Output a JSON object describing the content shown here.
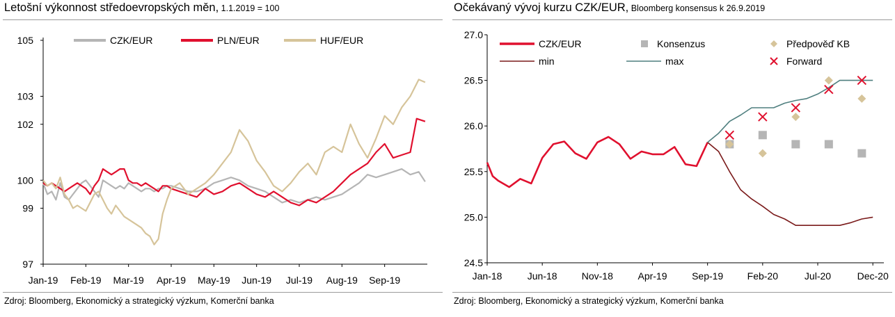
{
  "left": {
    "title_main": "Letošní výkonnost středoevropských měn,",
    "title_sub": " 1.1.2019 = 100",
    "source": "Zdroj: Bloomberg, Ekonomický a strategický výzkum, Komerční banka"
  },
  "right": {
    "title_main": "Očekávaný vývoj kurzu CZK/EUR,",
    "title_sub": " Bloomberg konsensus k 26.9.2019",
    "source": "Zdroj: Bloomberg, Ekonomický a strategický výzkum, Komerční banka"
  },
  "colors": {
    "czk": "#b5b5b5",
    "pln": "#e0102e",
    "huf": "#d6c49a",
    "min": "#7a1a1a",
    "max": "#4f7f7f",
    "konsenzus": "#b5b5b5",
    "predpoved": "#d6c49a",
    "forward": "#e0102e"
  },
  "chart_data": [
    {
      "type": "line",
      "ylim": [
        97,
        105
      ],
      "yticks": [
        "97",
        "99",
        "100",
        "102",
        "103",
        "105"
      ],
      "ytick_values": [
        97,
        99,
        100,
        102,
        103,
        105
      ],
      "xlim": [
        0,
        9
      ],
      "xticks": [
        "Jan-19",
        "Feb-19",
        "Mar-19",
        "Apr-19",
        "May-19",
        "Jun-19",
        "Jul-19",
        "Aug-19",
        "Sep-19"
      ],
      "legend": "top",
      "series": [
        {
          "name": "CZK/EUR",
          "color_key": "czk",
          "x": [
            0.0,
            0.1,
            0.2,
            0.3,
            0.4,
            0.5,
            0.6,
            0.7,
            0.8,
            0.9,
            1.0,
            1.1,
            1.2,
            1.3,
            1.4,
            1.5,
            1.6,
            1.7,
            1.8,
            1.9,
            2.0,
            2.1,
            2.2,
            2.3,
            2.4,
            2.5,
            2.6,
            2.7,
            2.8,
            2.9,
            3.0,
            3.2,
            3.4,
            3.6,
            3.8,
            4.0,
            4.2,
            4.4,
            4.6,
            4.8,
            5.0,
            5.2,
            5.4,
            5.6,
            5.8,
            6.0,
            6.2,
            6.4,
            6.6,
            6.8,
            7.0,
            7.2,
            7.4,
            7.6,
            7.8,
            8.0,
            8.2,
            8.4,
            8.6,
            8.8,
            8.95
          ],
          "y": [
            99.9,
            99.5,
            99.6,
            99.3,
            99.9,
            99.4,
            99.3,
            99.5,
            99.7,
            99.9,
            100.0,
            99.8,
            99.6,
            99.4,
            100.0,
            99.9,
            99.8,
            99.7,
            99.8,
            99.7,
            99.9,
            99.8,
            99.7,
            99.6,
            99.7,
            99.7,
            99.6,
            99.7,
            99.7,
            99.8,
            99.8,
            99.7,
            99.6,
            99.6,
            99.7,
            99.9,
            100.0,
            100.1,
            100.0,
            99.8,
            99.7,
            99.6,
            99.4,
            99.2,
            99.3,
            99.2,
            99.3,
            99.4,
            99.3,
            99.4,
            99.5,
            99.7,
            99.9,
            100.2,
            100.1,
            100.2,
            100.3,
            100.4,
            100.2,
            100.3,
            99.95
          ]
        },
        {
          "name": "PLN/EUR",
          "color_key": "pln",
          "x": [
            0.0,
            0.1,
            0.2,
            0.3,
            0.4,
            0.5,
            0.6,
            0.7,
            0.8,
            0.9,
            1.0,
            1.1,
            1.2,
            1.3,
            1.4,
            1.5,
            1.6,
            1.7,
            1.8,
            1.9,
            2.0,
            2.1,
            2.2,
            2.3,
            2.4,
            2.5,
            2.6,
            2.7,
            2.8,
            2.9,
            3.0,
            3.2,
            3.4,
            3.6,
            3.8,
            4.0,
            4.2,
            4.4,
            4.6,
            4.8,
            5.0,
            5.2,
            5.4,
            5.6,
            5.8,
            6.0,
            6.2,
            6.4,
            6.6,
            6.8,
            7.0,
            7.2,
            7.4,
            7.6,
            7.8,
            8.0,
            8.2,
            8.4,
            8.6,
            8.75,
            8.95
          ],
          "y": [
            99.9,
            99.8,
            99.9,
            99.8,
            99.7,
            99.6,
            99.7,
            99.8,
            99.9,
            99.8,
            99.7,
            99.5,
            99.8,
            100.0,
            100.4,
            100.3,
            100.2,
            100.3,
            100.4,
            100.4,
            100.0,
            99.9,
            99.9,
            99.8,
            99.9,
            99.8,
            99.7,
            99.6,
            99.8,
            99.8,
            99.7,
            99.6,
            99.5,
            99.4,
            99.7,
            99.5,
            99.6,
            99.8,
            99.9,
            99.7,
            99.5,
            99.4,
            99.6,
            99.4,
            99.2,
            99.1,
            99.3,
            99.2,
            99.4,
            99.6,
            99.9,
            100.2,
            100.4,
            100.6,
            101.0,
            101.3,
            100.8,
            100.9,
            101.0,
            102.2,
            102.1
          ]
        },
        {
          "name": "HUF/EUR",
          "color_key": "huf",
          "x": [
            0.0,
            0.1,
            0.2,
            0.3,
            0.4,
            0.5,
            0.6,
            0.7,
            0.8,
            0.9,
            1.0,
            1.1,
            1.2,
            1.3,
            1.4,
            1.5,
            1.6,
            1.7,
            1.8,
            1.9,
            2.0,
            2.1,
            2.2,
            2.3,
            2.4,
            2.5,
            2.6,
            2.7,
            2.8,
            2.9,
            3.0,
            3.2,
            3.4,
            3.6,
            3.8,
            4.0,
            4.2,
            4.4,
            4.6,
            4.8,
            5.0,
            5.2,
            5.4,
            5.6,
            5.8,
            6.0,
            6.2,
            6.4,
            6.6,
            6.8,
            7.0,
            7.2,
            7.4,
            7.6,
            7.8,
            8.0,
            8.2,
            8.4,
            8.6,
            8.8,
            8.95
          ],
          "y": [
            100.0,
            99.8,
            99.9,
            99.7,
            100.1,
            99.5,
            99.3,
            99.0,
            99.1,
            99.0,
            98.9,
            99.2,
            99.5,
            99.6,
            99.3,
            99.0,
            98.8,
            99.1,
            98.9,
            98.7,
            98.6,
            98.5,
            98.4,
            98.3,
            98.1,
            98.0,
            97.7,
            97.9,
            98.8,
            99.3,
            99.7,
            99.9,
            99.5,
            99.7,
            99.9,
            100.2,
            100.6,
            101.0,
            101.8,
            101.4,
            100.7,
            100.3,
            99.8,
            99.6,
            99.9,
            100.3,
            100.6,
            100.2,
            101.0,
            101.2,
            101.0,
            102.0,
            101.3,
            100.8,
            101.5,
            102.3,
            102.0,
            102.6,
            103.0,
            103.6,
            103.5
          ]
        }
      ]
    },
    {
      "type": "line",
      "ylim": [
        24.5,
        27.0
      ],
      "yticks": [
        "24.5",
        "25.0",
        "25.5",
        "26.0",
        "26.5",
        "27.0"
      ],
      "ytick_values": [
        24.5,
        25.0,
        25.5,
        26.0,
        26.5,
        27.0
      ],
      "xlim": [
        0,
        36
      ],
      "xticks": [
        "Jan-18",
        "Jun-18",
        "Nov-18",
        "Apr-19",
        "Sep-19",
        "Feb-20",
        "Jul-20",
        "Dec-20"
      ],
      "xtick_values": [
        0,
        5,
        10,
        15,
        20,
        25,
        30,
        35
      ],
      "legend": "top",
      "series": [
        {
          "name": "CZK/EUR",
          "color_key": "czk_line",
          "x": [
            0,
            0.5,
            1,
            2,
            3,
            4,
            5,
            6,
            7,
            8,
            9,
            10,
            11,
            12,
            13,
            14,
            15,
            16,
            17,
            18,
            19,
            20
          ],
          "y": [
            25.6,
            25.45,
            25.4,
            25.33,
            25.42,
            25.37,
            25.65,
            25.8,
            25.83,
            25.7,
            25.64,
            25.82,
            25.88,
            25.8,
            25.64,
            25.72,
            25.69,
            25.69,
            25.77,
            25.58,
            25.56,
            25.82
          ]
        },
        {
          "name": "min",
          "color_key": "min",
          "x": [
            20,
            21,
            22,
            23,
            24,
            25,
            26,
            27,
            28,
            29,
            30,
            31,
            32,
            33,
            34,
            35
          ],
          "y": [
            25.82,
            25.72,
            25.5,
            25.3,
            25.2,
            25.12,
            25.03,
            24.98,
            24.91,
            24.91,
            24.91,
            24.91,
            24.91,
            24.94,
            24.98,
            25.0
          ]
        },
        {
          "name": "max",
          "color_key": "max",
          "x": [
            20,
            21,
            22,
            23,
            24,
            25,
            26,
            27,
            28,
            29,
            30,
            31,
            32,
            33,
            34,
            35
          ],
          "y": [
            25.82,
            25.92,
            26.05,
            26.12,
            26.2,
            26.2,
            26.2,
            26.25,
            26.28,
            26.3,
            26.35,
            26.42,
            26.5,
            26.5,
            26.5,
            26.5
          ]
        },
        {
          "name": "Konsenzus",
          "color_key": "konsenzus",
          "marker": "square",
          "x": [
            22,
            25,
            28,
            31,
            34
          ],
          "y": [
            25.8,
            25.9,
            25.8,
            25.8,
            25.7
          ]
        },
        {
          "name": "Předpověď KB",
          "color_key": "predpoved",
          "marker": "diamond",
          "x": [
            22,
            25,
            28,
            31,
            34
          ],
          "y": [
            25.8,
            25.7,
            26.1,
            26.5,
            26.3
          ]
        },
        {
          "name": "Forward",
          "color_key": "forward",
          "marker": "x",
          "x": [
            22,
            25,
            28,
            31,
            34
          ],
          "y": [
            25.9,
            26.1,
            26.2,
            26.4,
            26.5
          ]
        }
      ]
    }
  ]
}
